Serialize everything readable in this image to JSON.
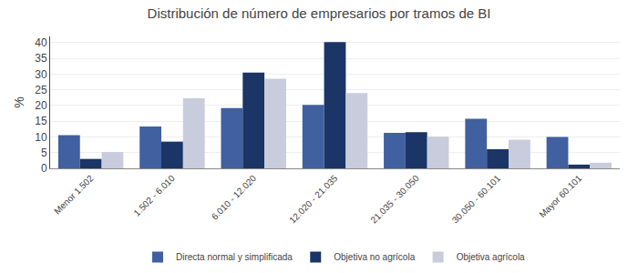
{
  "chart_data": {
    "type": "bar",
    "title": "Distribución de número de empresarios por tramos de BI",
    "categories": [
      "Menor 1.502",
      "1.502 - 6.010",
      "6.010 - 12.020",
      "12.020 - 21.035",
      "21.035 - 30.050",
      "30.050 - 60.101",
      "Mayor 60.101"
    ],
    "series": [
      {
        "name": "Directa normal y simplificada",
        "color": "#4060A0",
        "values": [
          10.6,
          13.3,
          19.2,
          20.2,
          11.3,
          15.8,
          10.0
        ]
      },
      {
        "name": "Objetiva no agrícola",
        "color": "#1A3566",
        "values": [
          3.0,
          8.5,
          30.5,
          40.2,
          11.5,
          6.1,
          1.2
        ]
      },
      {
        "name": "Objetiva agrícola",
        "color": "#C8CCDC",
        "values": [
          5.2,
          22.3,
          28.5,
          24.0,
          10.1,
          9.1,
          1.8
        ]
      }
    ],
    "ylabel": "%",
    "ylim": [
      0,
      42
    ],
    "yticks": [
      0,
      5,
      10,
      15,
      20,
      25,
      30,
      35,
      40
    ],
    "grid": true,
    "legend": "bottom"
  }
}
